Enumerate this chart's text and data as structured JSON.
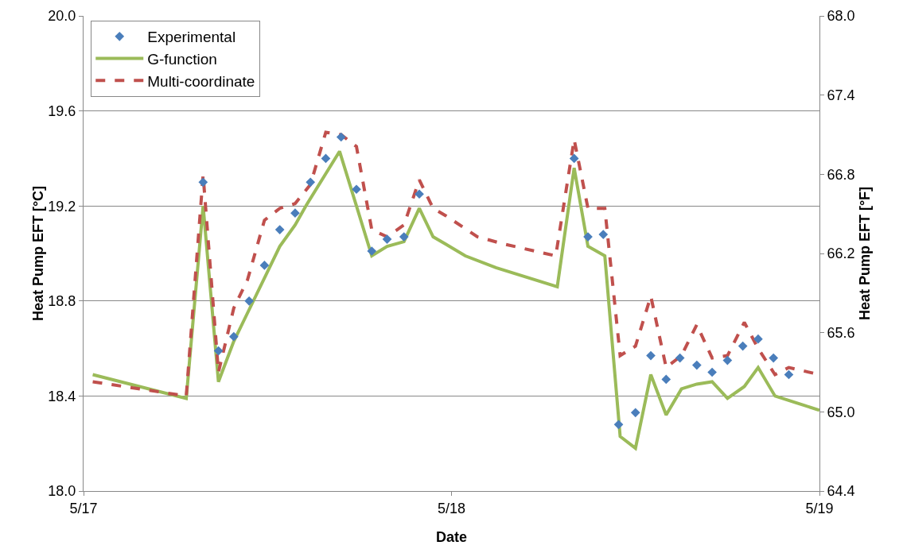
{
  "chart_data": {
    "type": "line",
    "xlabel": "Date",
    "ylabel": "Heat Pump EFT [°C]",
    "y2label": "Heat Pump EFT [°F]",
    "xlim": [
      "--05-17",
      "--05-19"
    ],
    "xticks": [
      {
        "value": "--05-17",
        "label": "5/17"
      },
      {
        "value": "--05-18",
        "label": "5/18"
      },
      {
        "value": "--05-19",
        "label": "5/19"
      }
    ],
    "ylim": [
      18,
      20
    ],
    "yticks": [
      {
        "value": 18,
        "label": "18.0"
      },
      {
        "value": 18.4,
        "label": "18.4"
      },
      {
        "value": 18.8,
        "label": "18.8"
      },
      {
        "value": 19.2,
        "label": "19.2"
      },
      {
        "value": 19.6,
        "label": "19.6"
      },
      {
        "value": 20,
        "label": "20.0"
      }
    ],
    "y2lim": [
      64.4,
      68
    ],
    "y2ticks": [
      {
        "value": 64.4,
        "label": "64.4"
      },
      {
        "value": 65,
        "label": "65.0"
      },
      {
        "value": 65.6,
        "label": "65.6"
      },
      {
        "value": 66.2,
        "label": "66.2"
      },
      {
        "value": 66.8,
        "label": "66.8"
      },
      {
        "value": 67.4,
        "label": "67.4"
      },
      {
        "value": 68,
        "label": "68.0"
      }
    ],
    "grid": "y",
    "legend": "top left",
    "series": [
      {
        "name": "Experimental",
        "type": "scatter",
        "marker": "diamond",
        "color": "#4a7ebb",
        "x": [
          "--05-17T07:48",
          "--05-17T08:48",
          "--05-17T09:48",
          "--05-17T10:48",
          "--05-17T11:48",
          "--05-17T12:48",
          "--05-17T13:48",
          "--05-17T14:48",
          "--05-17T15:48",
          "--05-17T16:48",
          "--05-17T17:48",
          "--05-17T18:48",
          "--05-17T19:48",
          "--05-17T20:54",
          "--05-17T21:54",
          "--05-18T08:00",
          "--05-18T08:54",
          "--05-18T09:54",
          "--05-18T10:54",
          "--05-18T12:00",
          "--05-18T13:00",
          "--05-18T14:00",
          "--05-18T14:54",
          "--05-18T16:00",
          "--05-18T17:00",
          "--05-18T18:00",
          "--05-18T19:00",
          "--05-18T20:00",
          "--05-18T21:00",
          "--05-18T22:00"
        ],
        "values": [
          19.3,
          18.59,
          18.65,
          18.8,
          18.95,
          19.1,
          19.17,
          19.3,
          19.4,
          19.49,
          19.27,
          19.01,
          19.06,
          19.07,
          19.25,
          19.4,
          19.07,
          19.08,
          18.28,
          18.33,
          18.57,
          18.47,
          18.56,
          18.53,
          18.5,
          18.55,
          18.61,
          18.64,
          18.56,
          18.49
        ]
      },
      {
        "name": "G-function",
        "line_style": "solid",
        "color": "#9bbb59",
        "x": [
          "--05-17T00:36",
          "--05-17T06:42",
          "--05-17T07:48",
          "--05-17T08:48",
          "--05-17T09:48",
          "--05-17T10:42",
          "--05-17T12:48",
          "--05-17T13:48",
          "--05-17T14:30",
          "--05-17T16:42",
          "--05-17T17:48",
          "--05-17T18:48",
          "--05-17T19:48",
          "--05-17T20:54",
          "--05-17T21:54",
          "--05-17T22:48",
          "--05-17T23:36",
          "--05-18T00:54",
          "--05-18T02:54",
          "--05-18T06:54",
          "--05-18T08:00",
          "--05-18T08:54",
          "--05-18T10:00",
          "--05-18T11:00",
          "--05-18T12:00",
          "--05-18T13:00",
          "--05-18T14:00",
          "--05-18T15:00",
          "--05-18T16:00",
          "--05-18T17:00",
          "--05-18T18:00",
          "--05-18T19:06",
          "--05-18T20:00",
          "--05-18T21:06",
          "--05-19T00:00"
        ],
        "values": [
          18.49,
          18.39,
          19.2,
          18.46,
          18.63,
          18.75,
          19.03,
          19.12,
          19.2,
          19.43,
          19.2,
          18.99,
          19.03,
          19.05,
          19.19,
          19.07,
          19.04,
          18.99,
          18.94,
          18.86,
          19.36,
          19.03,
          18.99,
          18.23,
          18.18,
          18.49,
          18.32,
          18.43,
          18.45,
          18.46,
          18.39,
          18.44,
          18.52,
          18.4,
          18.34
        ]
      },
      {
        "name": "Multi-coordinate",
        "line_style": "dashed",
        "color": "#c0504d",
        "x": [
          "--05-17T00:36",
          "--05-17T06:42",
          "--05-17T07:48",
          "--05-17T08:48",
          "--05-17T09:48",
          "--05-17T10:42",
          "--05-17T11:48",
          "--05-17T12:48",
          "--05-17T13:48",
          "--05-17T14:48",
          "--05-17T15:48",
          "--05-17T16:48",
          "--05-17T17:48",
          "--05-17T18:48",
          "--05-17T19:48",
          "--05-17T20:54",
          "--05-17T21:54",
          "--05-17T22:48",
          "--05-17T23:36",
          "--05-18T01:42",
          "--05-18T03:24",
          "--05-18T06:48",
          "--05-18T08:00",
          "--05-18T08:54",
          "--05-18T10:00",
          "--05-18T11:00",
          "--05-18T12:00",
          "--05-18T13:00",
          "--05-18T14:00",
          "--05-18T15:00",
          "--05-18T16:00",
          "--05-18T17:00",
          "--05-18T18:00",
          "--05-18T19:06",
          "--05-18T20:00",
          "--05-18T21:06",
          "--05-18T22:00",
          "--05-19T00:00"
        ],
        "values": [
          18.46,
          18.4,
          19.33,
          18.5,
          18.77,
          18.89,
          19.14,
          19.19,
          19.21,
          19.29,
          19.51,
          19.5,
          19.45,
          19.1,
          19.07,
          19.12,
          19.31,
          19.19,
          19.16,
          19.07,
          19.04,
          18.99,
          19.48,
          19.19,
          19.19,
          18.57,
          18.61,
          18.82,
          18.52,
          18.57,
          18.7,
          18.56,
          18.57,
          18.71,
          18.6,
          18.49,
          18.52,
          18.49
        ]
      }
    ]
  }
}
